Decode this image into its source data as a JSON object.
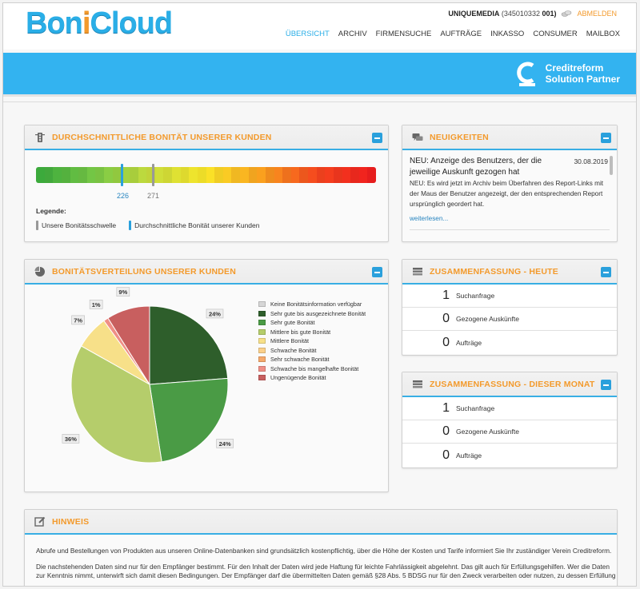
{
  "brand": {
    "logo_part1": "Bon",
    "logo_part2": "i",
    "logo_part3": "Cloud"
  },
  "user": {
    "name": "UNIQUEMEDIA",
    "id": "(345010332",
    "suffix": "001)",
    "logout": "ABMELDEN"
  },
  "nav": [
    "ÜBERSICHT",
    "ARCHIV",
    "FIRMENSUCHE",
    "AUFTRÄGE",
    "INKASSO",
    "CONSUMER",
    "MAILBOX"
  ],
  "banner": {
    "line1": "Creditreform",
    "line2": "Solution Partner"
  },
  "bonitaet": {
    "title": "DURCHSCHNITTLICHE BONITÄT UNSERER KUNDEN",
    "value_customers": "226",
    "value_threshold": "271",
    "legend_title": "Legende:",
    "legend_threshold": "Unsere Bonitätsschwelle",
    "legend_customers": "Durchschnittliche Bonität unserer Kunden"
  },
  "news": {
    "title": "NEUIGKEITEN",
    "item_title": "NEU: Anzeige des Benutzers, der die jeweilige Auskunft gezogen hat",
    "item_date": "30.08.2019",
    "item_body": "NEU: Es wird jetzt im Archiv beim Überfahren des Report-Links mit der Maus der Benutzer angezeigt, der den entsprechenden Report ursprünglich geordert hat.",
    "more": "weiterlesen..."
  },
  "verteilung": {
    "title": "BONITÄTSVERTEILUNG UNSERER KUNDEN"
  },
  "chart_data": {
    "type": "pie",
    "categories": [
      "Keine Bonitätsinformation verfügbar",
      "Sehr gute bis ausgezeichnete Bonität",
      "Sehr gute Bonität",
      "Mittlere bis gute Bonität",
      "Mittlere Bonität",
      "Schwache Bonität",
      "Sehr schwache Bonität",
      "Schwache bis mangelhafte Bonität",
      "Ungenügende Bonität"
    ],
    "values": [
      0,
      24,
      24,
      36,
      7,
      0,
      0,
      1,
      9
    ],
    "labels": [
      "",
      "24%",
      "24%",
      "36%",
      "7%",
      "",
      "",
      "1%",
      "9%"
    ],
    "colors": [
      "#d6d6d6",
      "#2e5e2b",
      "#4a9b45",
      "#b5cd6b",
      "#f7e089",
      "#fbd08a",
      "#f6a96b",
      "#ef8f86",
      "#c85f5f"
    ],
    "legend": "right"
  },
  "summary_today": {
    "title": "ZUSAMMENFASSUNG - HEUTE",
    "rows": [
      {
        "num": "1",
        "label": "Suchanfrage"
      },
      {
        "num": "0",
        "label": "Gezogene Auskünfte"
      },
      {
        "num": "0",
        "label": "Aufträge"
      }
    ]
  },
  "summary_month": {
    "title": "ZUSAMMENFASSUNG - DIESER MONAT",
    "rows": [
      {
        "num": "1",
        "label": "Suchanfrage"
      },
      {
        "num": "0",
        "label": "Gezogene Auskünfte"
      },
      {
        "num": "0",
        "label": "Aufträge"
      }
    ]
  },
  "hinweis": {
    "title": "HINWEIS",
    "p1": "Abrufe und Bestellungen von Produkten aus unseren Online-Datenbanken sind grundsätzlich kostenpflichtig, über die Höhe der Kosten und Tarife informiert Sie Ihr zuständiger Verein Creditreform.",
    "p2": "Die nachstehenden Daten sind nur für den Empfänger bestimmt. Für den Inhalt der Daten wird jede Haftung für leichte Fahrlässigkeit abgelehnt. Das gilt auch für Erfüllungsgehilfen. Wer die Daten zur Kenntnis nimmt, unterwirft sich damit diesen Bedingungen. Der Empfänger darf die übermittelten Daten gemäß §28 Abs. 5 BDSG nur für den Zweck verarbeiten oder nutzen, zu dessen Erfüllung"
  },
  "colors": {
    "accent_blue": "#33b3f0",
    "accent_orange": "#f39a2c"
  }
}
